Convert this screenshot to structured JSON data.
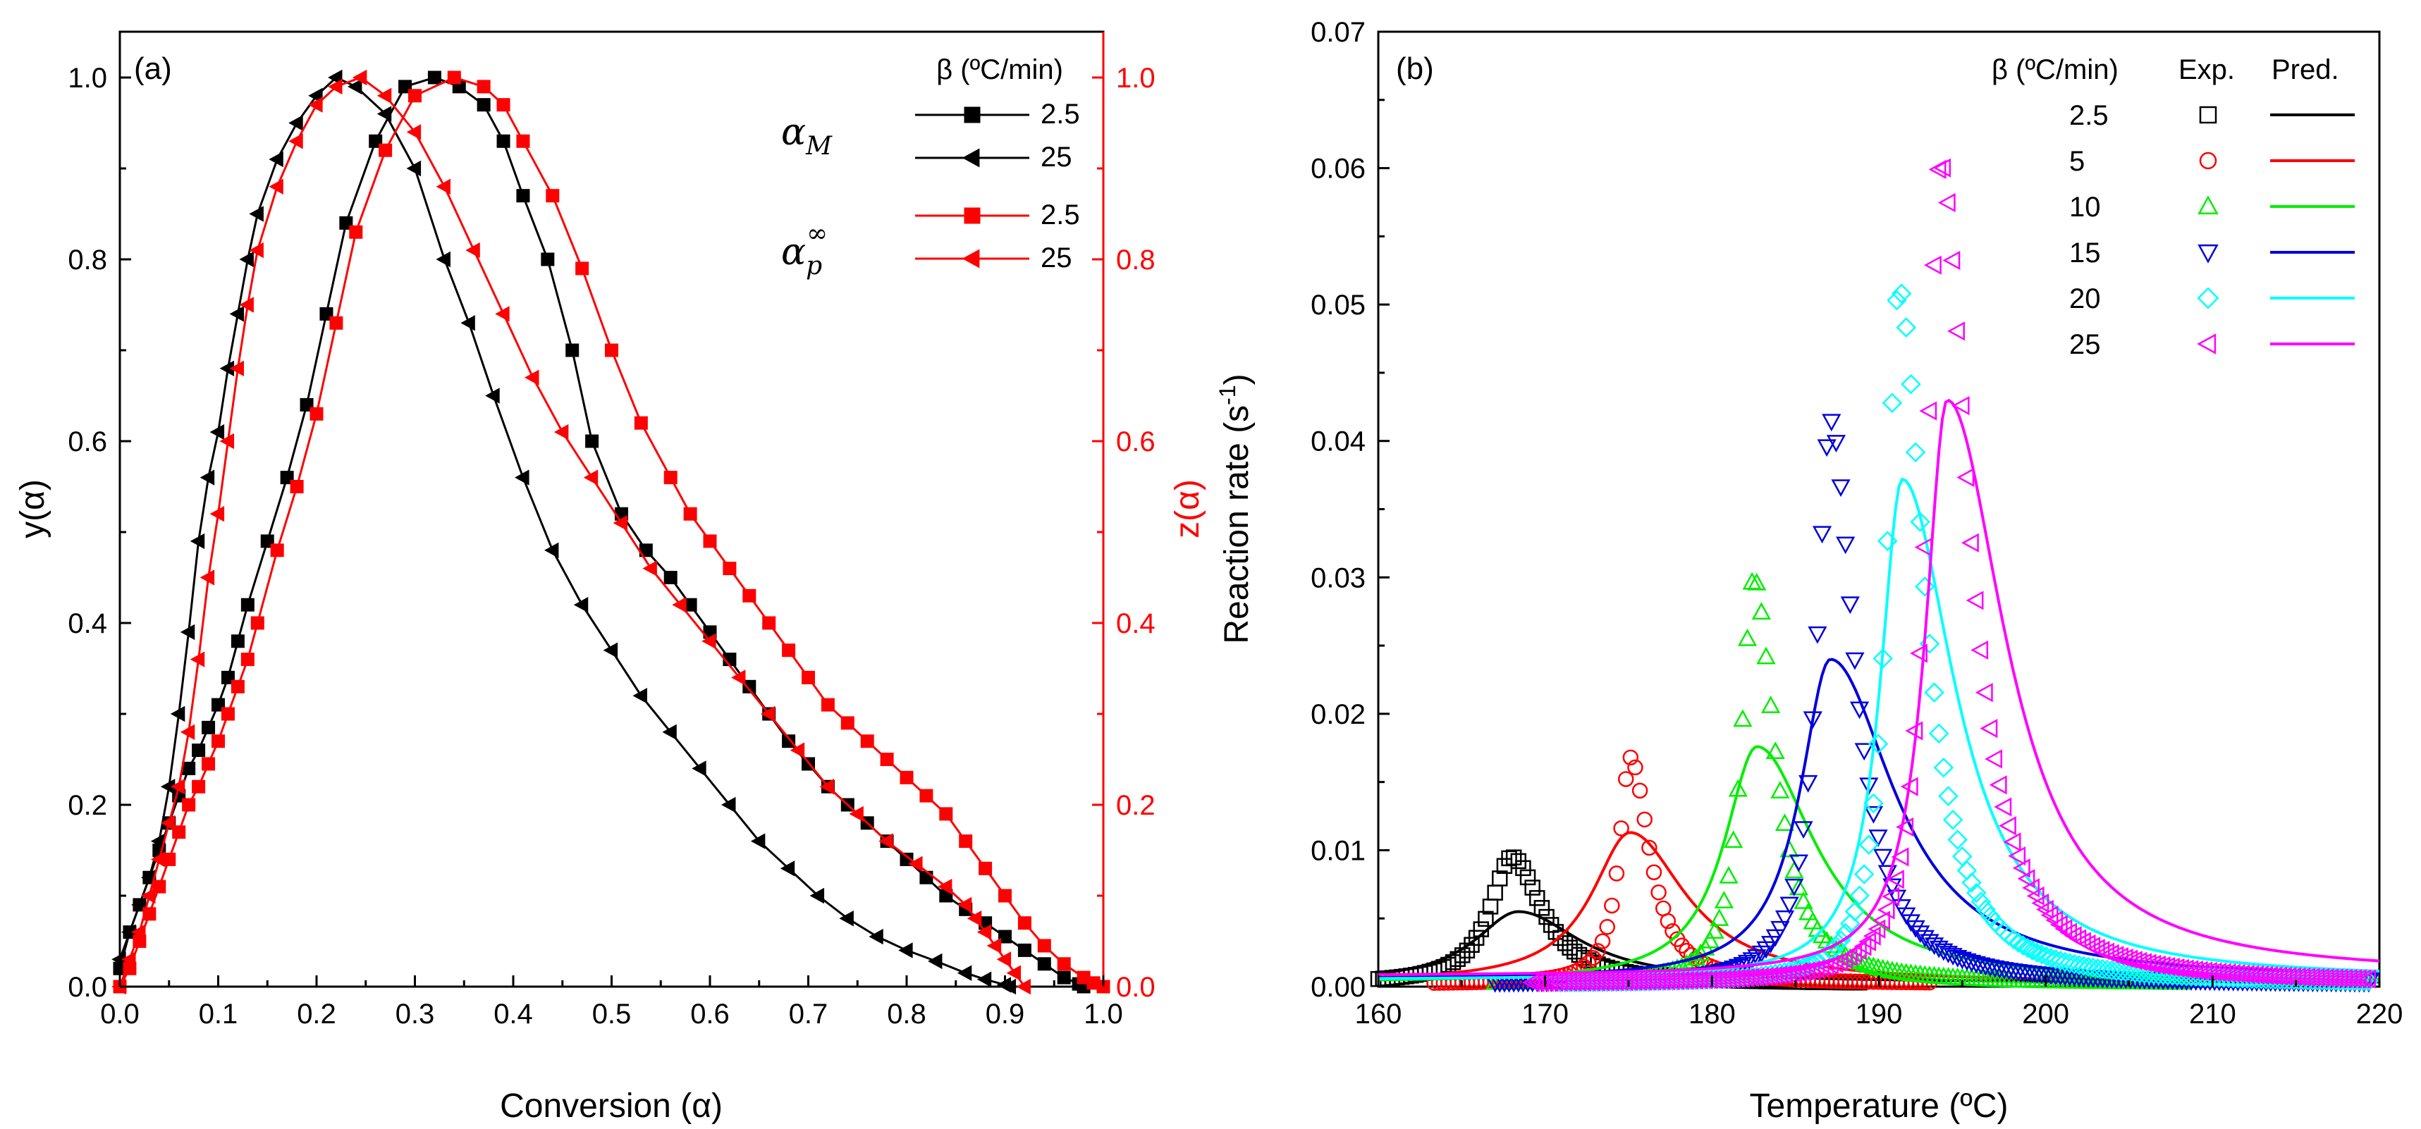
{
  "chart_data": [
    {
      "type": "line",
      "panel_label": "(a)",
      "xlabel": "Conversion (α)",
      "ylabel": "y(α)",
      "y2label": "z(α)",
      "xlim": [
        0.0,
        1.0
      ],
      "ylim": [
        0.0,
        1.05
      ],
      "y2lim": [
        0.0,
        1.05
      ],
      "x_ticks": [
        "0.0",
        "0.1",
        "0.2",
        "0.3",
        "0.4",
        "0.5",
        "0.6",
        "0.7",
        "0.8",
        "0.9",
        "1.0"
      ],
      "y_ticks": [
        "0.0",
        "0.2",
        "0.4",
        "0.6",
        "0.8",
        "1.0"
      ],
      "y2_ticks": [
        "0.0",
        "0.2",
        "0.4",
        "0.6",
        "0.8",
        "1.0"
      ],
      "legend": {
        "title": "β (ºC/min)",
        "group1_symbol": "α",
        "group1_sub": "M",
        "group2_symbol": "α",
        "group2_sub": "p",
        "group2_sup": "∞",
        "entries": [
          "2.5",
          "25",
          "2.5",
          "25"
        ]
      },
      "series": [
        {
          "name": "αM 2.5",
          "color": "#000000",
          "marker": "square",
          "axis": "left",
          "x": [
            0.0,
            0.01,
            0.02,
            0.03,
            0.04,
            0.05,
            0.06,
            0.07,
            0.08,
            0.09,
            0.1,
            0.11,
            0.12,
            0.13,
            0.15,
            0.17,
            0.19,
            0.21,
            0.23,
            0.26,
            0.29,
            0.32,
            0.345,
            0.37,
            0.39,
            0.41,
            0.435,
            0.46,
            0.48,
            0.51,
            0.535,
            0.56,
            0.58,
            0.6,
            0.62,
            0.64,
            0.66,
            0.68,
            0.7,
            0.72,
            0.74,
            0.76,
            0.78,
            0.8,
            0.82,
            0.84,
            0.86,
            0.88,
            0.9,
            0.92,
            0.94,
            0.96,
            0.975,
            0.98
          ],
          "y": [
            0.02,
            0.06,
            0.09,
            0.12,
            0.15,
            0.18,
            0.21,
            0.24,
            0.26,
            0.285,
            0.31,
            0.34,
            0.38,
            0.42,
            0.49,
            0.56,
            0.64,
            0.74,
            0.84,
            0.93,
            0.99,
            1.0,
            0.99,
            0.97,
            0.93,
            0.87,
            0.8,
            0.7,
            0.6,
            0.52,
            0.48,
            0.45,
            0.42,
            0.39,
            0.36,
            0.33,
            0.3,
            0.27,
            0.245,
            0.22,
            0.2,
            0.18,
            0.16,
            0.14,
            0.12,
            0.1,
            0.085,
            0.07,
            0.055,
            0.04,
            0.025,
            0.01,
            0.003,
            0.0
          ]
        },
        {
          "name": "αM 25",
          "color": "#000000",
          "marker": "triangle-left",
          "axis": "left",
          "x": [
            0.0,
            0.01,
            0.02,
            0.03,
            0.04,
            0.05,
            0.06,
            0.07,
            0.08,
            0.09,
            0.1,
            0.11,
            0.12,
            0.13,
            0.14,
            0.16,
            0.18,
            0.2,
            0.22,
            0.24,
            0.27,
            0.3,
            0.33,
            0.355,
            0.38,
            0.41,
            0.44,
            0.47,
            0.5,
            0.53,
            0.56,
            0.59,
            0.62,
            0.65,
            0.68,
            0.71,
            0.74,
            0.77,
            0.8,
            0.83,
            0.86,
            0.88,
            0.9,
            0.905
          ],
          "y": [
            0.03,
            0.06,
            0.09,
            0.12,
            0.16,
            0.22,
            0.3,
            0.39,
            0.49,
            0.56,
            0.61,
            0.68,
            0.74,
            0.8,
            0.85,
            0.91,
            0.95,
            0.98,
            1.0,
            0.99,
            0.96,
            0.9,
            0.8,
            0.73,
            0.65,
            0.56,
            0.48,
            0.42,
            0.37,
            0.32,
            0.28,
            0.24,
            0.2,
            0.16,
            0.13,
            0.1,
            0.075,
            0.055,
            0.04,
            0.028,
            0.015,
            0.008,
            0.002,
            0.0
          ]
        },
        {
          "name": "αp∞ 2.5",
          "color": "#ff0000",
          "marker": "square",
          "axis": "right",
          "x": [
            0.0,
            0.01,
            0.02,
            0.03,
            0.04,
            0.05,
            0.06,
            0.07,
            0.08,
            0.09,
            0.1,
            0.11,
            0.12,
            0.13,
            0.14,
            0.16,
            0.18,
            0.2,
            0.22,
            0.24,
            0.27,
            0.3,
            0.34,
            0.37,
            0.39,
            0.41,
            0.44,
            0.47,
            0.5,
            0.53,
            0.56,
            0.58,
            0.6,
            0.62,
            0.64,
            0.66,
            0.68,
            0.7,
            0.72,
            0.74,
            0.76,
            0.78,
            0.8,
            0.82,
            0.84,
            0.86,
            0.88,
            0.9,
            0.92,
            0.94,
            0.96,
            0.98,
            0.99,
            1.0
          ],
          "y": [
            0.0,
            0.02,
            0.05,
            0.08,
            0.11,
            0.14,
            0.17,
            0.2,
            0.22,
            0.245,
            0.27,
            0.3,
            0.33,
            0.36,
            0.4,
            0.48,
            0.55,
            0.63,
            0.73,
            0.83,
            0.92,
            0.98,
            1.0,
            0.99,
            0.97,
            0.93,
            0.87,
            0.79,
            0.7,
            0.62,
            0.56,
            0.52,
            0.49,
            0.46,
            0.43,
            0.4,
            0.37,
            0.34,
            0.31,
            0.29,
            0.27,
            0.25,
            0.23,
            0.21,
            0.19,
            0.16,
            0.13,
            0.1,
            0.07,
            0.045,
            0.025,
            0.01,
            0.004,
            0.0
          ]
        },
        {
          "name": "αp∞ 25",
          "color": "#ff0000",
          "marker": "triangle-left",
          "axis": "right",
          "x": [
            0.0,
            0.01,
            0.02,
            0.03,
            0.04,
            0.05,
            0.06,
            0.07,
            0.08,
            0.09,
            0.1,
            0.11,
            0.12,
            0.13,
            0.14,
            0.16,
            0.18,
            0.2,
            0.22,
            0.245,
            0.27,
            0.3,
            0.33,
            0.36,
            0.39,
            0.42,
            0.45,
            0.48,
            0.51,
            0.54,
            0.57,
            0.6,
            0.63,
            0.66,
            0.69,
            0.72,
            0.75,
            0.78,
            0.81,
            0.84,
            0.86,
            0.87,
            0.88,
            0.89,
            0.9,
            0.91,
            0.92
          ],
          "y": [
            0.0,
            0.03,
            0.06,
            0.1,
            0.14,
            0.18,
            0.22,
            0.28,
            0.36,
            0.45,
            0.52,
            0.6,
            0.68,
            0.75,
            0.81,
            0.88,
            0.93,
            0.97,
            0.99,
            1.0,
            0.98,
            0.94,
            0.88,
            0.81,
            0.74,
            0.67,
            0.61,
            0.56,
            0.51,
            0.46,
            0.42,
            0.38,
            0.34,
            0.3,
            0.26,
            0.22,
            0.19,
            0.16,
            0.135,
            0.11,
            0.09,
            0.075,
            0.06,
            0.045,
            0.03,
            0.015,
            0.0
          ]
        }
      ]
    },
    {
      "type": "line",
      "panel_label": "(b)",
      "xlabel": "Temperature (ºC)",
      "ylabel": "Reaction rate (s",
      "ylabel_sup": "-1",
      "ylabel_end": ")",
      "xlim": [
        160,
        220
      ],
      "ylim": [
        0.0,
        0.07
      ],
      "x_ticks": [
        "160",
        "170",
        "180",
        "190",
        "200",
        "210",
        "220"
      ],
      "y_ticks": [
        "0.00",
        "0.01",
        "0.02",
        "0.03",
        "0.04",
        "0.05",
        "0.06",
        "0.07"
      ],
      "legend": {
        "beta_title": "β (ºC/min)",
        "exp_title": "Exp.",
        "pred_title": "Pred.",
        "entries": [
          "2.5",
          "5",
          "10",
          "15",
          "20",
          "25"
        ]
      },
      "series": [
        {
          "name": "2.5",
          "color": "#000000",
          "marker": "square",
          "pred_peak_T": 168.4,
          "pred_peak": 0.0055,
          "pred_wl": 3.2,
          "pred_wr": 4.5,
          "pred_base": 0.0003,
          "exp_peak_T": 168.0,
          "exp_peak": 0.0095,
          "exp_wl": 1.6,
          "exp_wr": 2.2
        },
        {
          "name": "5",
          "color": "#ff0000",
          "marker": "circle",
          "pred_peak_T": 175.1,
          "pred_peak": 0.0113,
          "pred_wl": 2.8,
          "pred_wr": 4.0,
          "pred_base": 0.0003,
          "exp_peak_T": 175.1,
          "exp_peak": 0.0168,
          "exp_wl": 0.8,
          "exp_wr": 1.4
        },
        {
          "name": "10",
          "color": "#00ee00",
          "marker": "triangle-up",
          "pred_peak_T": 182.7,
          "pred_peak": 0.0176,
          "pred_wl": 2.4,
          "pred_wr": 4.2,
          "pred_base": 0.0003,
          "exp_peak_T": 182.5,
          "exp_peak": 0.03,
          "exp_wl": 0.9,
          "exp_wr": 1.5
        },
        {
          "name": "15",
          "color": "#0000dd",
          "marker": "triangle-down",
          "pred_peak_T": 187.1,
          "pred_peak": 0.024,
          "pred_wl": 2.2,
          "pred_wr": 4.6,
          "pred_base": 0.0005,
          "exp_peak_T": 187.1,
          "exp_peak": 0.0415,
          "exp_wl": 1.0,
          "exp_wr": 1.7
        },
        {
          "name": "20",
          "color": "#00ffff",
          "marker": "diamond",
          "pred_peak_T": 191.4,
          "pred_peak": 0.0372,
          "pred_wl": 1.6,
          "pred_wr": 3.8,
          "pred_base": 0.0005,
          "exp_peak_T": 191.2,
          "exp_peak": 0.0512,
          "exp_wl": 0.9,
          "exp_wr": 1.8
        },
        {
          "name": "25",
          "color": "#ff00ff",
          "marker": "triangle-left",
          "pred_peak_T": 194.1,
          "pred_peak": 0.043,
          "pred_wl": 1.6,
          "pred_wr": 4.2,
          "pred_base": 0.0008,
          "exp_peak_T": 193.7,
          "exp_peak": 0.0605,
          "exp_wl": 1.0,
          "exp_wr": 2.0
        }
      ]
    }
  ]
}
